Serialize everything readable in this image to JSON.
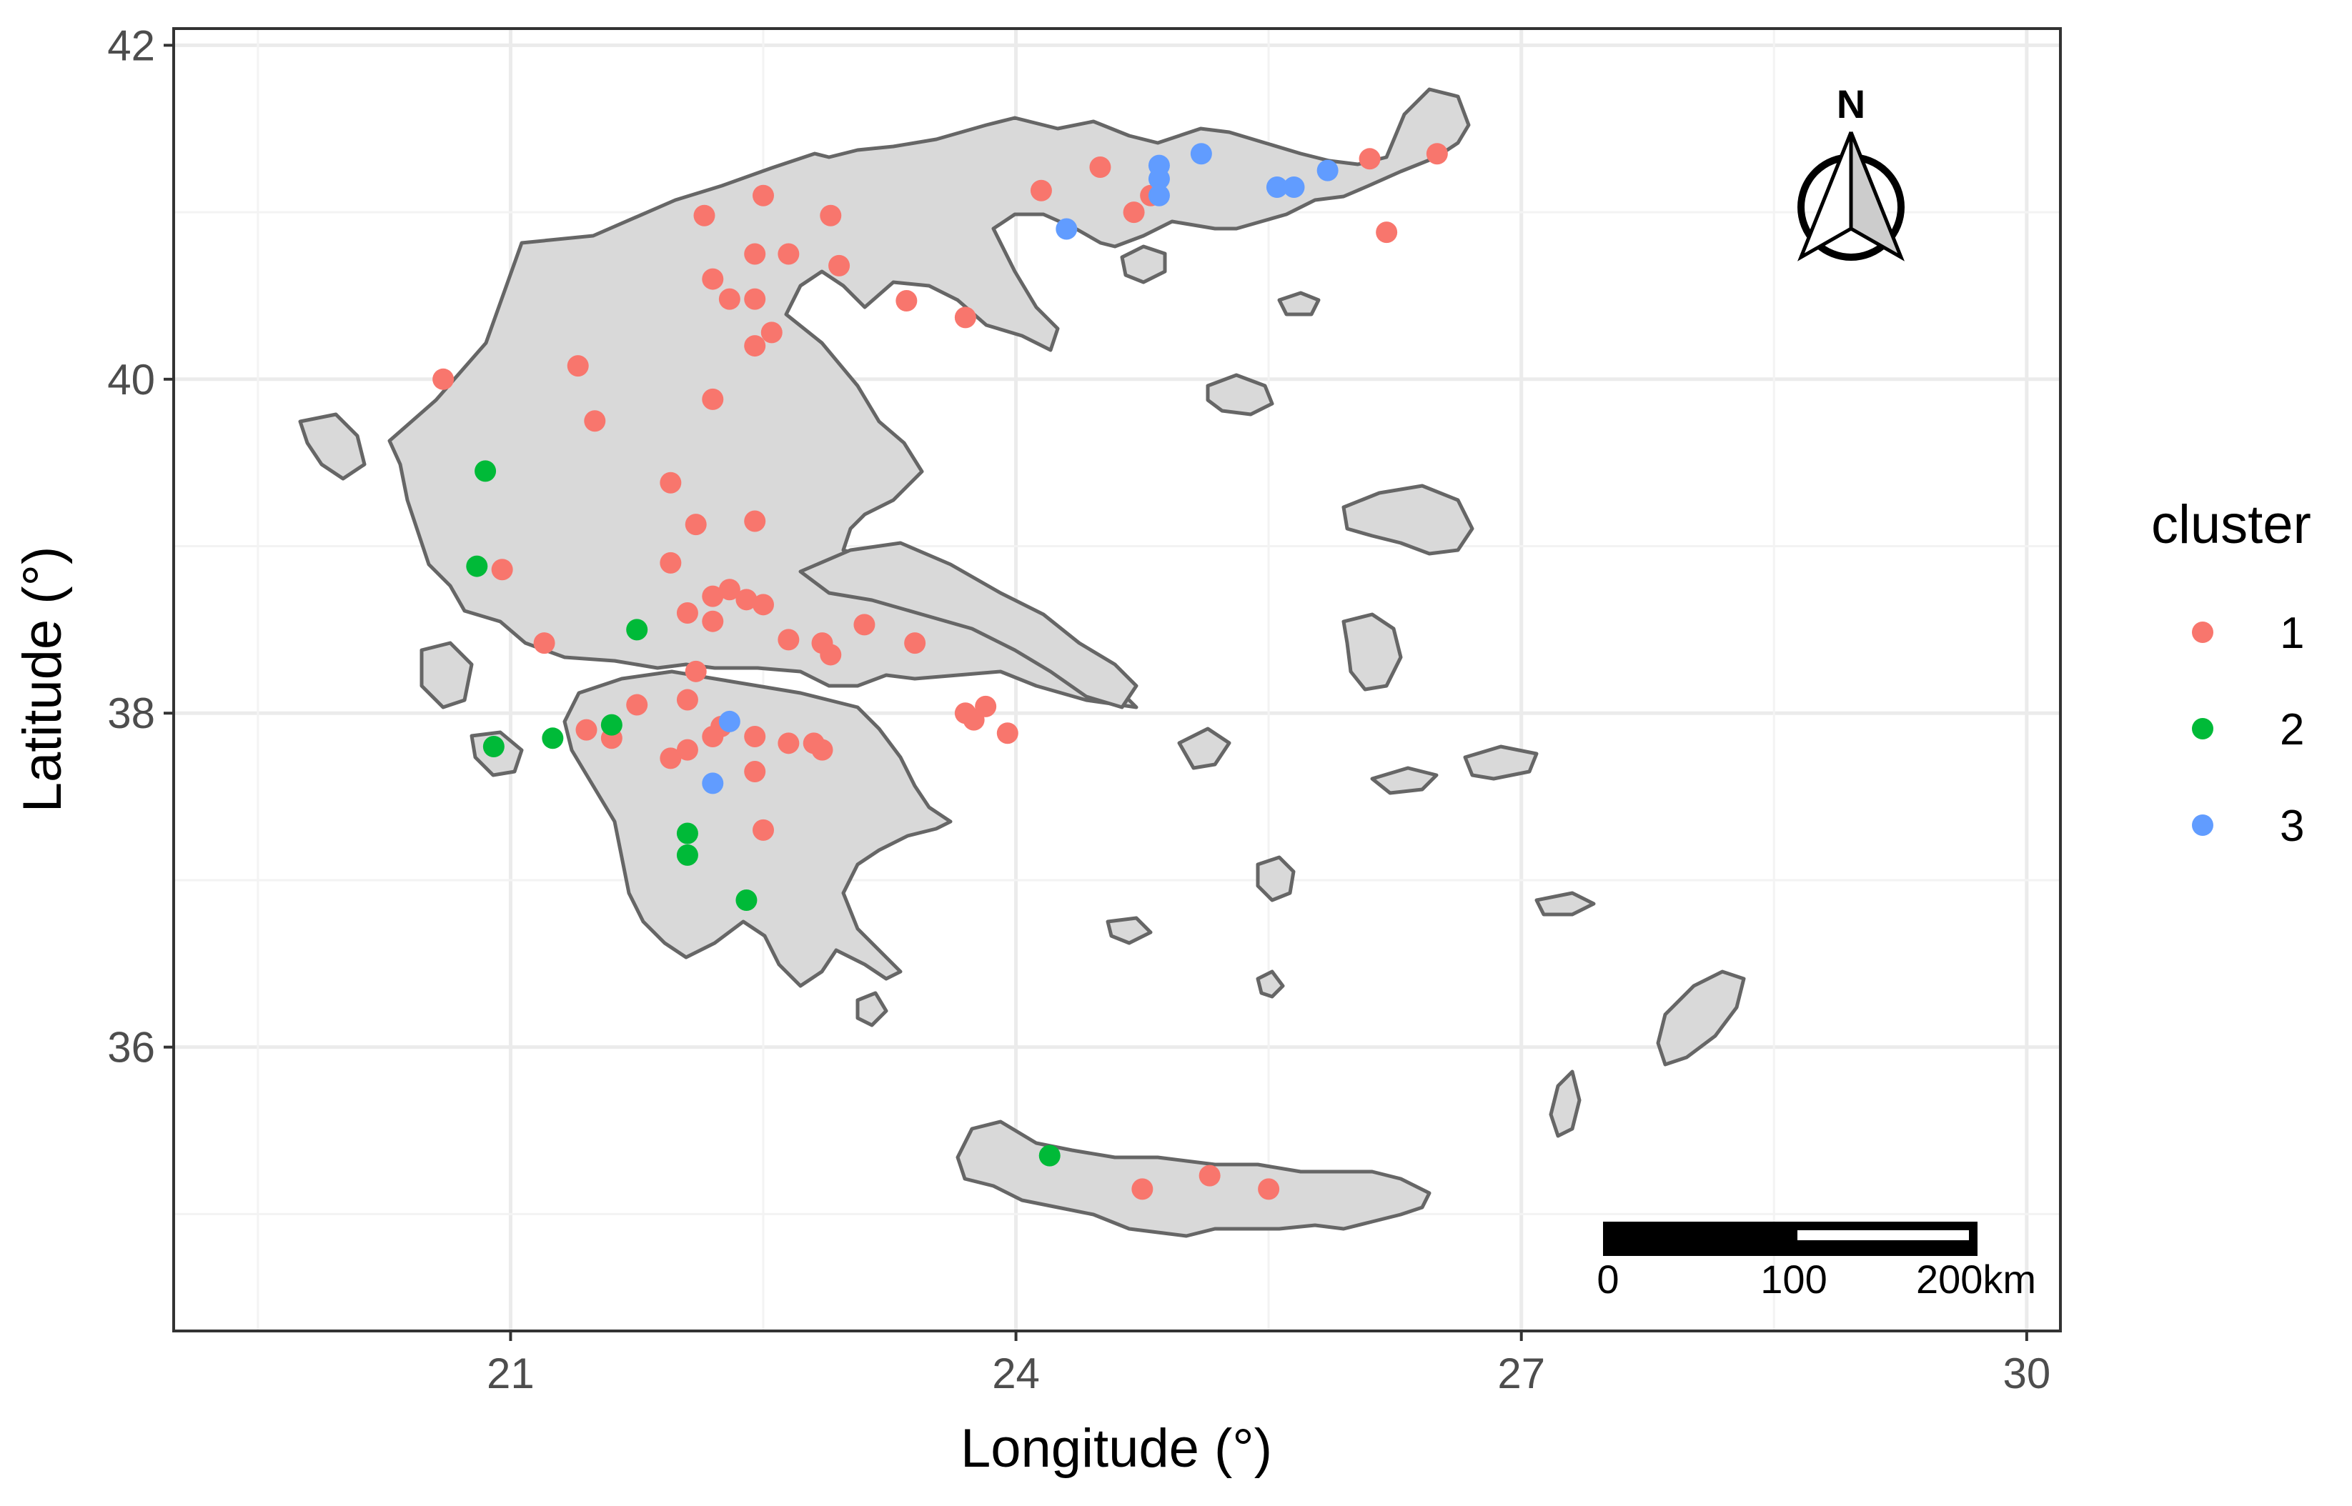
{
  "chart_data": {
    "type": "scatter",
    "map_region": "Greece",
    "xlabel": "Longitude (°)",
    "ylabel": "Latitude (°)",
    "xlim": [
      19.0,
      30.2
    ],
    "ylim": [
      34.3,
      42.1
    ],
    "x_ticks": [
      "21",
      "24",
      "27",
      "30"
    ],
    "y_ticks": [
      "36",
      "38",
      "40",
      "42"
    ],
    "grid": true,
    "legend": {
      "title": "cluster",
      "placement": "right",
      "items": [
        {
          "label": "1",
          "color": "#F8766D"
        },
        {
          "label": "2",
          "color": "#00BA38"
        },
        {
          "label": "3",
          "color": "#619CFF"
        }
      ]
    },
    "north_arrow": {
      "label": "N",
      "placement": "top-right"
    },
    "scale_bar": {
      "labels": [
        "0",
        "100",
        "200km"
      ],
      "placement": "bottom-right"
    },
    "series": [
      {
        "name": "1",
        "color": "#F8766D",
        "points": [
          [
            22.5,
            41.1
          ],
          [
            22.15,
            40.98
          ],
          [
            22.9,
            40.98
          ],
          [
            22.45,
            40.75
          ],
          [
            22.65,
            40.75
          ],
          [
            22.95,
            40.68
          ],
          [
            22.2,
            40.6
          ],
          [
            22.3,
            40.48
          ],
          [
            22.45,
            40.48
          ],
          [
            22.55,
            40.28
          ],
          [
            22.45,
            40.2
          ],
          [
            21.4,
            40.08
          ],
          [
            20.6,
            40.0
          ],
          [
            22.2,
            39.88
          ],
          [
            21.5,
            39.75
          ],
          [
            21.95,
            39.38
          ],
          [
            22.1,
            39.13
          ],
          [
            22.45,
            39.15
          ],
          [
            21.95,
            38.9
          ],
          [
            20.95,
            38.86
          ],
          [
            22.2,
            38.7
          ],
          [
            22.3,
            38.74
          ],
          [
            22.4,
            38.68
          ],
          [
            22.5,
            38.65
          ],
          [
            22.05,
            38.6
          ],
          [
            22.2,
            38.55
          ],
          [
            23.1,
            38.53
          ],
          [
            21.2,
            38.42
          ],
          [
            22.65,
            38.44
          ],
          [
            22.85,
            38.42
          ],
          [
            23.4,
            38.42
          ],
          [
            22.9,
            38.35
          ],
          [
            22.1,
            38.25
          ],
          [
            21.75,
            38.05
          ],
          [
            22.05,
            38.08
          ],
          [
            22.25,
            37.92
          ],
          [
            22.2,
            37.86
          ],
          [
            22.45,
            37.86
          ],
          [
            21.45,
            37.9
          ],
          [
            21.6,
            37.85
          ],
          [
            22.05,
            37.78
          ],
          [
            21.95,
            37.73
          ],
          [
            22.65,
            37.82
          ],
          [
            22.8,
            37.82
          ],
          [
            22.85,
            37.78
          ],
          [
            22.45,
            37.65
          ],
          [
            22.5,
            37.3
          ],
          [
            23.7,
            38.0
          ],
          [
            23.75,
            37.96
          ],
          [
            23.82,
            38.04
          ],
          [
            23.95,
            37.88
          ],
          [
            23.35,
            40.47
          ],
          [
            23.7,
            40.37
          ],
          [
            24.15,
            41.13
          ],
          [
            24.5,
            41.27
          ],
          [
            24.7,
            41.0
          ],
          [
            24.8,
            41.1
          ],
          [
            26.1,
            41.32
          ],
          [
            26.5,
            41.35
          ],
          [
            26.2,
            40.88
          ],
          [
            24.75,
            35.15
          ],
          [
            25.15,
            35.23
          ],
          [
            25.5,
            35.15
          ]
        ]
      },
      {
        "name": "2",
        "color": "#00BA38",
        "points": [
          [
            20.85,
            39.45
          ],
          [
            20.8,
            38.88
          ],
          [
            21.75,
            38.5
          ],
          [
            20.9,
            37.8
          ],
          [
            21.25,
            37.85
          ],
          [
            21.6,
            37.93
          ],
          [
            22.05,
            37.28
          ],
          [
            22.05,
            37.15
          ],
          [
            22.4,
            36.88
          ],
          [
            24.2,
            35.35
          ]
        ]
      },
      {
        "name": "3",
        "color": "#619CFF",
        "points": [
          [
            24.3,
            40.9
          ],
          [
            24.85,
            41.28
          ],
          [
            24.85,
            41.2
          ],
          [
            24.85,
            41.1
          ],
          [
            25.1,
            41.35
          ],
          [
            25.55,
            41.15
          ],
          [
            25.65,
            41.15
          ],
          [
            25.85,
            41.25
          ],
          [
            22.3,
            37.95
          ],
          [
            22.2,
            37.58
          ]
        ]
      }
    ]
  }
}
